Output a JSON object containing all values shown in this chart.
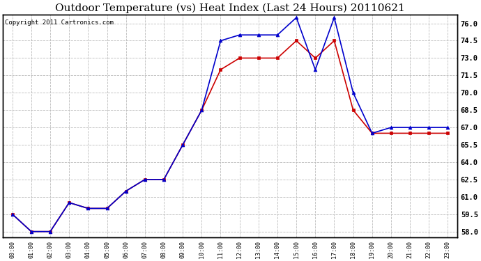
{
  "title": "Outdoor Temperature (vs) Heat Index (Last 24 Hours) 20110621",
  "copyright": "Copyright 2011 Cartronics.com",
  "x_labels": [
    "00:00",
    "01:00",
    "02:00",
    "03:00",
    "04:00",
    "05:00",
    "06:00",
    "07:00",
    "08:00",
    "09:00",
    "10:00",
    "11:00",
    "12:00",
    "13:00",
    "14:00",
    "15:00",
    "16:00",
    "17:00",
    "18:00",
    "19:00",
    "20:00",
    "21:00",
    "22:00",
    "23:00"
  ],
  "temp_red": [
    59.5,
    58.0,
    58.0,
    60.5,
    60.0,
    60.0,
    61.5,
    62.5,
    62.5,
    65.5,
    68.5,
    72.0,
    73.0,
    73.0,
    73.0,
    74.5,
    73.0,
    74.5,
    68.5,
    66.5,
    66.5,
    66.5,
    66.5,
    66.5
  ],
  "heat_blue": [
    59.5,
    58.0,
    58.0,
    60.5,
    60.0,
    60.0,
    61.5,
    62.5,
    62.5,
    65.5,
    68.5,
    74.5,
    75.0,
    75.0,
    75.0,
    76.5,
    72.0,
    76.5,
    70.0,
    66.5,
    67.0,
    67.0,
    67.0,
    67.0
  ],
  "ylim_min": 57.5,
  "ylim_max": 76.75,
  "yticks": [
    58.0,
    59.5,
    61.0,
    62.5,
    64.0,
    65.5,
    67.0,
    68.5,
    70.0,
    71.5,
    73.0,
    74.5,
    76.0
  ],
  "bg_color": "#ffffff",
  "plot_bg_color": "#ffffff",
  "grid_color": "#bbbbbb",
  "red_color": "#cc0000",
  "blue_color": "#0000cc",
  "title_fontsize": 11,
  "copyright_fontsize": 6.5
}
